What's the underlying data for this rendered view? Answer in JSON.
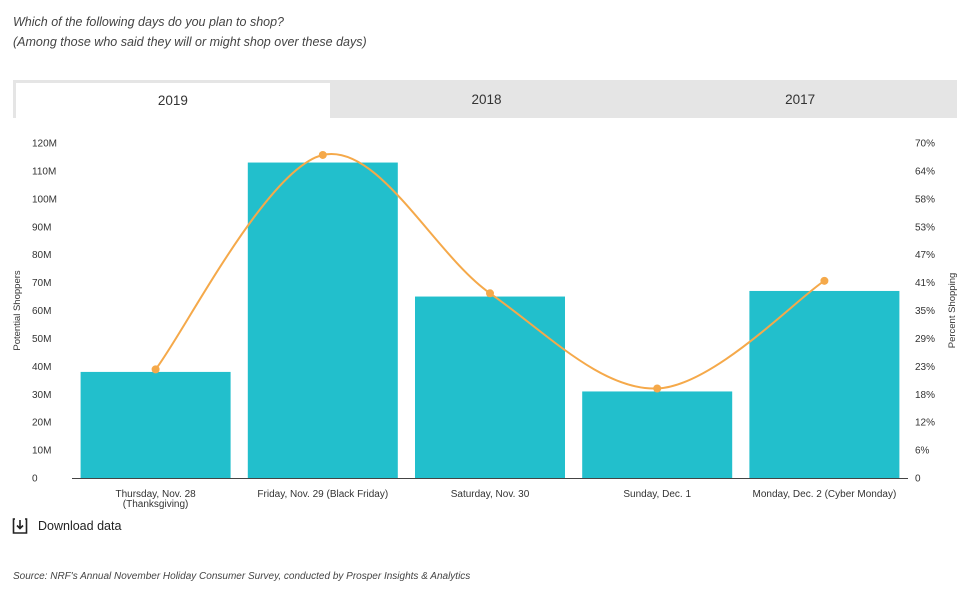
{
  "question": {
    "line1": "Which of the following days do you plan to shop?",
    "line2": "(Among those who said they will or might shop over these days)"
  },
  "tabs": [
    {
      "label": "2019",
      "active": true
    },
    {
      "label": "2018",
      "active": false
    },
    {
      "label": "2017",
      "active": false
    }
  ],
  "download": {
    "label": "Download data",
    "icon": "download-icon"
  },
  "source": "Source:  NRF's Annual November Holiday Consumer Survey, conducted by Prosper Insights & Analytics",
  "chart_data": {
    "type": "bar",
    "categories": [
      [
        "Thursday, Nov. 28",
        "(Thanksgiving)"
      ],
      [
        "Friday, Nov. 29 (Black Friday)"
      ],
      [
        "Saturday, Nov. 30"
      ],
      [
        "Sunday, Dec. 1"
      ],
      [
        "Monday, Dec. 2 (Cyber Monday)"
      ]
    ],
    "series": [
      {
        "values": [
          38,
          113,
          65,
          31,
          67
        ],
        "axis": "left",
        "type": "bar",
        "color": "#22bfcc"
      },
      {
        "values": [
          22.7,
          67.5,
          38.6,
          18.7,
          41.2
        ],
        "axis": "right",
        "type": "line",
        "color": "#f5a94a"
      }
    ],
    "ylabel": "Potential Shoppers",
    "y2label": "Percent Shopping",
    "ylim": [
      0,
      120
    ],
    "y2lim": [
      0,
      70
    ],
    "y_ticks": [
      "0",
      "10M",
      "20M",
      "30M",
      "40M",
      "50M",
      "60M",
      "70M",
      "80M",
      "90M",
      "100M",
      "110M",
      "120M"
    ],
    "y2_ticks": [
      "0",
      "6%",
      "12%",
      "18%",
      "23%",
      "29%",
      "35%",
      "41%",
      "47%",
      "53%",
      "58%",
      "64%",
      "70%"
    ],
    "grid": false
  }
}
